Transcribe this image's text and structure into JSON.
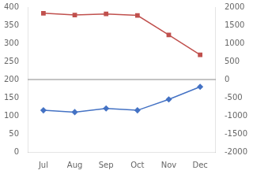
{
  "chart_data": {
    "type": "line",
    "categories": [
      "Jul",
      "Aug",
      "Sep",
      "Oct",
      "Nov",
      "Dec"
    ],
    "series": [
      {
        "color": "#4472C4",
        "marker": "diamond",
        "values": [
          115,
          110,
          120,
          115,
          145,
          180
        ]
      },
      {
        "color": "#C0504D",
        "marker": "square",
        "values": [
          383,
          378,
          381,
          377,
          323,
          268
        ]
      }
    ],
    "ylim": [
      0,
      400
    ],
    "yticks": [
      0,
      50,
      100,
      150,
      200,
      250,
      300,
      350,
      400
    ],
    "y2lim": [
      -2000,
      2000
    ],
    "y2ticks": [
      -2000,
      -1500,
      -1000,
      -500,
      0,
      500,
      1000,
      1500,
      2000
    ],
    "reference_line": {
      "y": 200,
      "color": "#888888"
    },
    "grid": false
  }
}
